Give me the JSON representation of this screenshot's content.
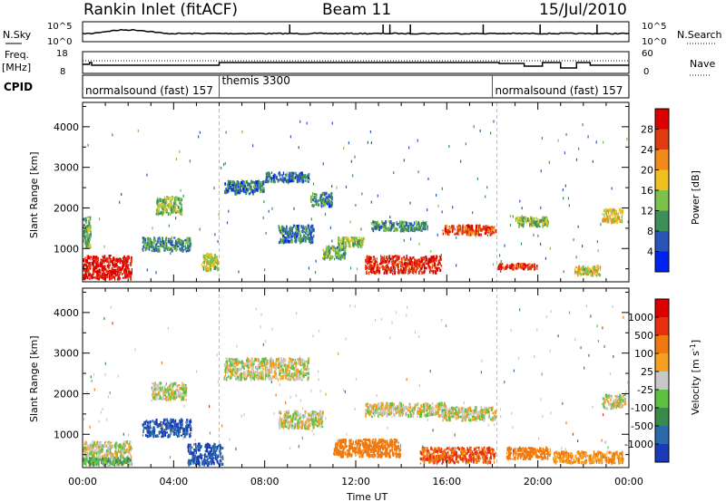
{
  "header": {
    "title": "Rankin Inlet (fitACF)",
    "beam": "Beam 11",
    "date": "15/Jul/2010"
  },
  "sky_panel": {
    "left_label": "N.Sky",
    "left_ticks": [
      "10^5",
      "10^0"
    ],
    "right_label": "N.Search",
    "right_ticks": [
      "10^5",
      "10^0"
    ]
  },
  "freq_panel": {
    "left_label_line1": "Freq.",
    "left_label_line2": "[MHz]",
    "left_ticks": [
      "18",
      "8"
    ],
    "right_label": "Nave",
    "right_ticks": [
      "60",
      "0"
    ]
  },
  "cpid_panel": {
    "label": "CPID",
    "programs": [
      {
        "name": "normalsound (fast)",
        "id": "157",
        "start_hour": 0
      },
      {
        "name": "themis",
        "id": "3300",
        "start_hour": 6
      },
      {
        "name": "normalsound (fast)",
        "id": "157",
        "start_hour": 18
      }
    ]
  },
  "power_panel": {
    "ylabel": "Slant Range [km]",
    "yticks": [
      "4000",
      "3000",
      "2000",
      "1000"
    ],
    "colorbar_label": "Power [dB]",
    "colorbar_ticks": [
      "28",
      "24",
      "20",
      "16",
      "12",
      "8",
      "4"
    ],
    "colors": [
      "#0022ee",
      "#2a55b8",
      "#3d8f5a",
      "#7cc24a",
      "#f0c020",
      "#f28a1a",
      "#e03a10",
      "#dd0000"
    ]
  },
  "velocity_panel": {
    "ylabel": "Slant Range [km]",
    "yticks": [
      "4000",
      "3000",
      "2000",
      "1000"
    ],
    "colorbar_label": "Velocity [m s",
    "colorbar_label_sup": "-1",
    "colorbar_label_end": "]",
    "colorbar_ticks": [
      "1000",
      "500",
      "100",
      "25",
      "-25",
      "-100",
      "-500",
      "-1000"
    ],
    "colors": [
      "#1a3ab8",
      "#2a6aa8",
      "#3a8a4a",
      "#5ec040",
      "#c8c8c8",
      "#f5a020",
      "#f07a10",
      "#e83010",
      "#dd0000"
    ]
  },
  "x_axis": {
    "ticks": [
      "00:00",
      "04:00",
      "08:00",
      "12:00",
      "16:00",
      "20:00",
      "00:00"
    ],
    "label": "Time UT"
  },
  "chart_data": [
    {
      "type": "heatmap",
      "title": "Rankin Inlet (fitACF)",
      "subtitle": "Beam 11",
      "xlabel": "Time UT",
      "ylabel": "Slant Range [km]",
      "colorbar": "Power [dB]",
      "xlim": [
        0,
        24
      ],
      "ylim": [
        180,
        4600
      ],
      "clim": [
        0,
        30
      ],
      "cells": [
        {
          "x": [
            0,
            2.2
          ],
          "y": [
            200,
            850
          ],
          "value": 30
        },
        {
          "x": [
            0,
            0.4
          ],
          "y": [
            1000,
            1800
          ],
          "value": 12
        },
        {
          "x": [
            2.6,
            4.8
          ],
          "y": [
            900,
            1300
          ],
          "value": 10
        },
        {
          "x": [
            3.2,
            4.4
          ],
          "y": [
            1800,
            2300
          ],
          "value": 14
        },
        {
          "x": [
            5.2,
            6.0
          ],
          "y": [
            400,
            900
          ],
          "value": 16
        },
        {
          "x": [
            6.2,
            8.0
          ],
          "y": [
            2300,
            2700
          ],
          "value": 8
        },
        {
          "x": [
            8.0,
            10.0
          ],
          "y": [
            2600,
            2900
          ],
          "value": 8
        },
        {
          "x": [
            10.0,
            11.0
          ],
          "y": [
            2000,
            2400
          ],
          "value": 8
        },
        {
          "x": [
            8.6,
            10.2
          ],
          "y": [
            1100,
            1600
          ],
          "value": 8
        },
        {
          "x": [
            10.5,
            11.6
          ],
          "y": [
            700,
            1100
          ],
          "value": 12
        },
        {
          "x": [
            11.2,
            12.4
          ],
          "y": [
            1000,
            1300
          ],
          "value": 14
        },
        {
          "x": [
            12.4,
            15.8
          ],
          "y": [
            350,
            850
          ],
          "value": 28
        },
        {
          "x": [
            12.6,
            15.2
          ],
          "y": [
            1400,
            1700
          ],
          "value": 10
        },
        {
          "x": [
            15.8,
            18.2
          ],
          "y": [
            1300,
            1600
          ],
          "value": 26
        },
        {
          "x": [
            18.2,
            20.0
          ],
          "y": [
            450,
            650
          ],
          "value": 26
        },
        {
          "x": [
            19.0,
            20.5
          ],
          "y": [
            1500,
            1800
          ],
          "value": 14
        },
        {
          "x": [
            21.6,
            22.8
          ],
          "y": [
            300,
            600
          ],
          "value": 18
        },
        {
          "x": [
            22.8,
            23.8
          ],
          "y": [
            1600,
            2000
          ],
          "value": 18
        }
      ]
    },
    {
      "type": "heatmap",
      "xlabel": "Time UT",
      "ylabel": "Slant Range [km]",
      "colorbar": "Velocity [m s-1]",
      "xlim": [
        0,
        24
      ],
      "ylim": [
        180,
        4600
      ],
      "clim": [
        -1000,
        1000
      ],
      "cells": [
        {
          "x": [
            0,
            2.2
          ],
          "y": [
            200,
            850
          ],
          "value": 0
        },
        {
          "x": [
            0,
            2.2
          ],
          "y": [
            200,
            450
          ],
          "value": 80
        },
        {
          "x": [
            2.6,
            4.8
          ],
          "y": [
            900,
            1400
          ],
          "value": 1000
        },
        {
          "x": [
            4.6,
            6.2
          ],
          "y": [
            200,
            800
          ],
          "value": 1000
        },
        {
          "x": [
            3.0,
            4.6
          ],
          "y": [
            1800,
            2300
          ],
          "value": 0
        },
        {
          "x": [
            6.2,
            10.0
          ],
          "y": [
            2300,
            2900
          ],
          "value": 0
        },
        {
          "x": [
            8.6,
            10.6
          ],
          "y": [
            1100,
            1600
          ],
          "value": 0
        },
        {
          "x": [
            11.0,
            14.0
          ],
          "y": [
            400,
            900
          ],
          "value": -200
        },
        {
          "x": [
            12.4,
            16.0
          ],
          "y": [
            1400,
            1800
          ],
          "value": 0
        },
        {
          "x": [
            14.8,
            18.2
          ],
          "y": [
            250,
            700
          ],
          "value": -500
        },
        {
          "x": [
            15.8,
            18.2
          ],
          "y": [
            1300,
            1700
          ],
          "value": 0
        },
        {
          "x": [
            18.6,
            20.6
          ],
          "y": [
            350,
            700
          ],
          "value": -300
        },
        {
          "x": [
            20.6,
            23.8
          ],
          "y": [
            250,
            600
          ],
          "value": -100
        },
        {
          "x": [
            22.8,
            23.9
          ],
          "y": [
            1600,
            2000
          ],
          "value": 0
        }
      ]
    }
  ]
}
